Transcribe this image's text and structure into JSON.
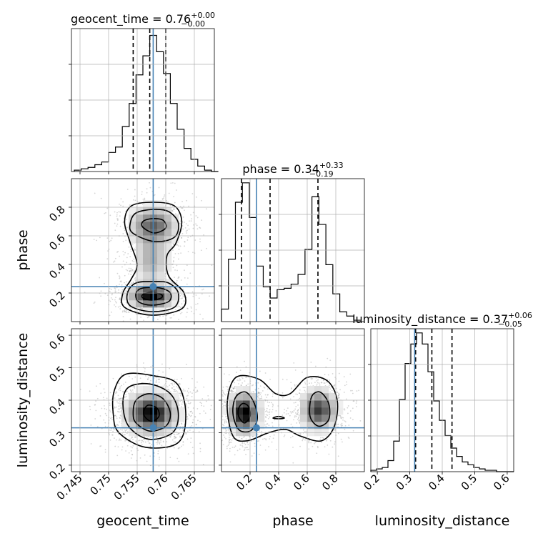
{
  "chart_data": {
    "type": "corner",
    "parameters": [
      "geocent_time",
      "phase",
      "luminosity_distance"
    ],
    "truths": [
      0.7578,
      0.245,
      0.315
    ],
    "colors": {
      "truth": "#4682b4",
      "hist": "#000000",
      "grid": "#b0b0b0",
      "points": "#888888"
    },
    "grid": true,
    "panels": [
      {
        "kind": "hist1d",
        "param": "geocent_time",
        "title": "geocent_time = 0.76",
        "title_base": "geocent_time = 0.76",
        "title_plus": "+0.00",
        "title_minus": "−0.00",
        "xlim": [
          0.7435,
          0.7685
        ],
        "xticks": [
          0.745,
          0.75,
          0.755,
          0.76,
          0.765
        ],
        "quantiles": [
          0.7543,
          0.7572,
          0.76
        ],
        "bins": {
          "start": 0.744,
          "width": 0.0012,
          "counts": [
            1,
            2,
            3,
            5,
            7,
            14,
            18,
            33,
            50,
            71,
            85,
            100,
            88,
            72,
            50,
            31,
            17,
            9,
            4,
            1,
            0
          ]
        },
        "ylim_max": 105
      },
      {
        "kind": "hist1d",
        "param": "phase",
        "title": "phase = 0.34",
        "title_base": "phase = 0.34",
        "title_plus": "+0.33",
        "title_minus": "−0.19",
        "xlim": [
          0.0,
          1.0
        ],
        "xticks": [
          0.2,
          0.4,
          0.6,
          0.8
        ],
        "quantiles": [
          0.14,
          0.34,
          0.675
        ],
        "bins": {
          "start": 0.0,
          "width": 0.0487,
          "counts": [
            9,
            45,
            86,
            100,
            75,
            40,
            25,
            17,
            23,
            24,
            27,
            34,
            52,
            90,
            70,
            41,
            20,
            7,
            4,
            1
          ]
        },
        "ylim_max": 103
      },
      {
        "kind": "hist1d",
        "param": "luminosity_distance",
        "title": "luminosity_distance = 0.37",
        "title_base": "luminosity_distance = 0.37",
        "title_plus": "+0.06",
        "title_minus": "−0.05",
        "xlim": [
          0.18,
          0.62
        ],
        "xticks": [
          0.2,
          0.3,
          0.4,
          0.5,
          0.6
        ],
        "quantiles": [
          0.318,
          0.368,
          0.43
        ],
        "bins": {
          "start": 0.18,
          "width": 0.0176,
          "counts": [
            1,
            2,
            3,
            8,
            22,
            52,
            78,
            92,
            100,
            92,
            72,
            51,
            37,
            26,
            17,
            11,
            7,
            5,
            3,
            2,
            1,
            1,
            0,
            0,
            0
          ]
        },
        "ylim_max": 103
      }
    ],
    "pairs": [
      {
        "xparam": "geocent_time",
        "yparam": "phase",
        "xlim": [
          0.7435,
          0.7685
        ],
        "ylim": [
          0.0,
          1.0
        ],
        "yticks": [
          0.2,
          0.4,
          0.6,
          0.8
        ],
        "blobs": [
          {
            "x": 0.7575,
            "y": 0.18,
            "sx": 0.0022,
            "sy": 0.05,
            "w": 0.5
          },
          {
            "x": 0.7578,
            "y": 0.67,
            "sx": 0.0024,
            "sy": 0.08,
            "w": 0.32
          },
          {
            "x": 0.7575,
            "y": 0.43,
            "sx": 0.0018,
            "sy": 0.1,
            "w": 0.18
          }
        ],
        "contours": [
          [
            [
              0.756,
              0.165
            ],
            [
              0.7575,
              0.15
            ],
            [
              0.7592,
              0.165
            ],
            [
              0.7592,
              0.19
            ],
            [
              0.7575,
              0.205
            ],
            [
              0.756,
              0.19
            ]
          ],
          [
            [
              0.7552,
              0.14
            ],
            [
              0.7575,
              0.115
            ],
            [
              0.7605,
              0.14
            ],
            [
              0.7608,
              0.2
            ],
            [
              0.759,
              0.235
            ],
            [
              0.756,
              0.235
            ],
            [
              0.7548,
              0.2
            ]
          ],
          [
            [
              0.7538,
              0.11
            ],
            [
              0.7575,
              0.07
            ],
            [
              0.7615,
              0.1
            ],
            [
              0.7622,
              0.2
            ],
            [
              0.7605,
              0.27
            ],
            [
              0.758,
              0.28
            ],
            [
              0.7548,
              0.27
            ],
            [
              0.7533,
              0.2
            ]
          ],
          [
            [
              0.756,
              0.66
            ],
            [
              0.758,
              0.62
            ],
            [
              0.76,
              0.655
            ],
            [
              0.7595,
              0.71
            ],
            [
              0.7575,
              0.72
            ],
            [
              0.756,
              0.7
            ]
          ],
          [
            [
              0.7542,
              0.62
            ],
            [
              0.758,
              0.56
            ],
            [
              0.7615,
              0.59
            ],
            [
              0.7622,
              0.69
            ],
            [
              0.7605,
              0.77
            ],
            [
              0.7578,
              0.785
            ],
            [
              0.7548,
              0.76
            ],
            [
              0.7538,
              0.69
            ]
          ],
          [
            [
              0.7528,
              0.1
            ],
            [
              0.7575,
              0.045
            ],
            [
              0.7628,
              0.09
            ],
            [
              0.7632,
              0.2
            ],
            [
              0.7605,
              0.32
            ],
            [
              0.7602,
              0.46
            ],
            [
              0.7618,
              0.55
            ],
            [
              0.7628,
              0.7
            ],
            [
              0.7615,
              0.81
            ],
            [
              0.7578,
              0.835
            ],
            [
              0.754,
              0.81
            ],
            [
              0.7528,
              0.7
            ],
            [
              0.7538,
              0.55
            ],
            [
              0.755,
              0.4
            ],
            [
              0.754,
              0.3
            ],
            [
              0.7525,
              0.2
            ]
          ]
        ]
      },
      {
        "xparam": "geocent_time",
        "yparam": "luminosity_distance",
        "xlim": [
          0.7435,
          0.7685
        ],
        "ylim": [
          0.18,
          0.62
        ],
        "yticks": [
          0.2,
          0.3,
          0.4,
          0.5,
          0.6
        ],
        "blobs": [
          {
            "x": 0.7575,
            "y": 0.36,
            "sx": 0.0025,
            "sy": 0.035,
            "w": 1.0
          }
        ],
        "contours": [
          [
            [
              0.7563,
              0.35
            ],
            [
              0.7575,
              0.335
            ],
            [
              0.7588,
              0.35
            ],
            [
              0.7585,
              0.375
            ],
            [
              0.757,
              0.385
            ],
            [
              0.7562,
              0.37
            ]
          ],
          [
            [
              0.7548,
              0.33
            ],
            [
              0.7572,
              0.305
            ],
            [
              0.76,
              0.32
            ],
            [
              0.7608,
              0.36
            ],
            [
              0.7595,
              0.405
            ],
            [
              0.757,
              0.42
            ],
            [
              0.7548,
              0.4
            ],
            [
              0.7543,
              0.36
            ]
          ],
          [
            [
              0.7535,
              0.32
            ],
            [
              0.757,
              0.28
            ],
            [
              0.7612,
              0.3
            ],
            [
              0.7622,
              0.36
            ],
            [
              0.7608,
              0.42
            ],
            [
              0.7572,
              0.45
            ],
            [
              0.7535,
              0.44
            ],
            [
              0.7525,
              0.39
            ]
          ],
          [
            [
              0.7518,
              0.3
            ],
            [
              0.7565,
              0.255
            ],
            [
              0.7622,
              0.27
            ],
            [
              0.7635,
              0.36
            ],
            [
              0.762,
              0.45
            ],
            [
              0.758,
              0.475
            ],
            [
              0.753,
              0.48
            ],
            [
              0.751,
              0.43
            ],
            [
              0.7508,
              0.36
            ]
          ]
        ]
      },
      {
        "xparam": "phase",
        "yparam": "luminosity_distance",
        "xlim": [
          0.0,
          1.0
        ],
        "ylim": [
          0.18,
          0.62
        ],
        "yticks": [
          0.2,
          0.3,
          0.4,
          0.5,
          0.6
        ],
        "blobs": [
          {
            "x": 0.16,
            "y": 0.36,
            "sx": 0.06,
            "sy": 0.035,
            "w": 0.55
          },
          {
            "x": 0.68,
            "y": 0.37,
            "sx": 0.07,
            "sy": 0.035,
            "w": 0.42
          }
        ],
        "contours": [
          [
            [
              0.12,
              0.35
            ],
            [
              0.16,
              0.33
            ],
            [
              0.2,
              0.35
            ],
            [
              0.19,
              0.38
            ],
            [
              0.15,
              0.39
            ],
            [
              0.12,
              0.375
            ]
          ],
          [
            [
              0.08,
              0.36
            ],
            [
              0.12,
              0.31
            ],
            [
              0.2,
              0.305
            ],
            [
              0.25,
              0.34
            ],
            [
              0.23,
              0.39
            ],
            [
              0.17,
              0.425
            ],
            [
              0.1,
              0.41
            ]
          ],
          [
            [
              0.62,
              0.35
            ],
            [
              0.68,
              0.32
            ],
            [
              0.75,
              0.34
            ],
            [
              0.75,
              0.39
            ],
            [
              0.69,
              0.425
            ],
            [
              0.63,
              0.41
            ]
          ],
          [
            [
              0.36,
              0.345
            ],
            [
              0.4,
              0.343
            ],
            [
              0.44,
              0.345
            ],
            [
              0.4,
              0.35
            ]
          ],
          [
            [
              0.04,
              0.39
            ],
            [
              0.08,
              0.29
            ],
            [
              0.18,
              0.275
            ],
            [
              0.33,
              0.3
            ],
            [
              0.45,
              0.31
            ],
            [
              0.55,
              0.29
            ],
            [
              0.7,
              0.275
            ],
            [
              0.79,
              0.32
            ],
            [
              0.81,
              0.4
            ],
            [
              0.74,
              0.46
            ],
            [
              0.6,
              0.47
            ],
            [
              0.48,
              0.42
            ],
            [
              0.38,
              0.42
            ],
            [
              0.26,
              0.465
            ],
            [
              0.1,
              0.47
            ]
          ]
        ]
      }
    ]
  }
}
